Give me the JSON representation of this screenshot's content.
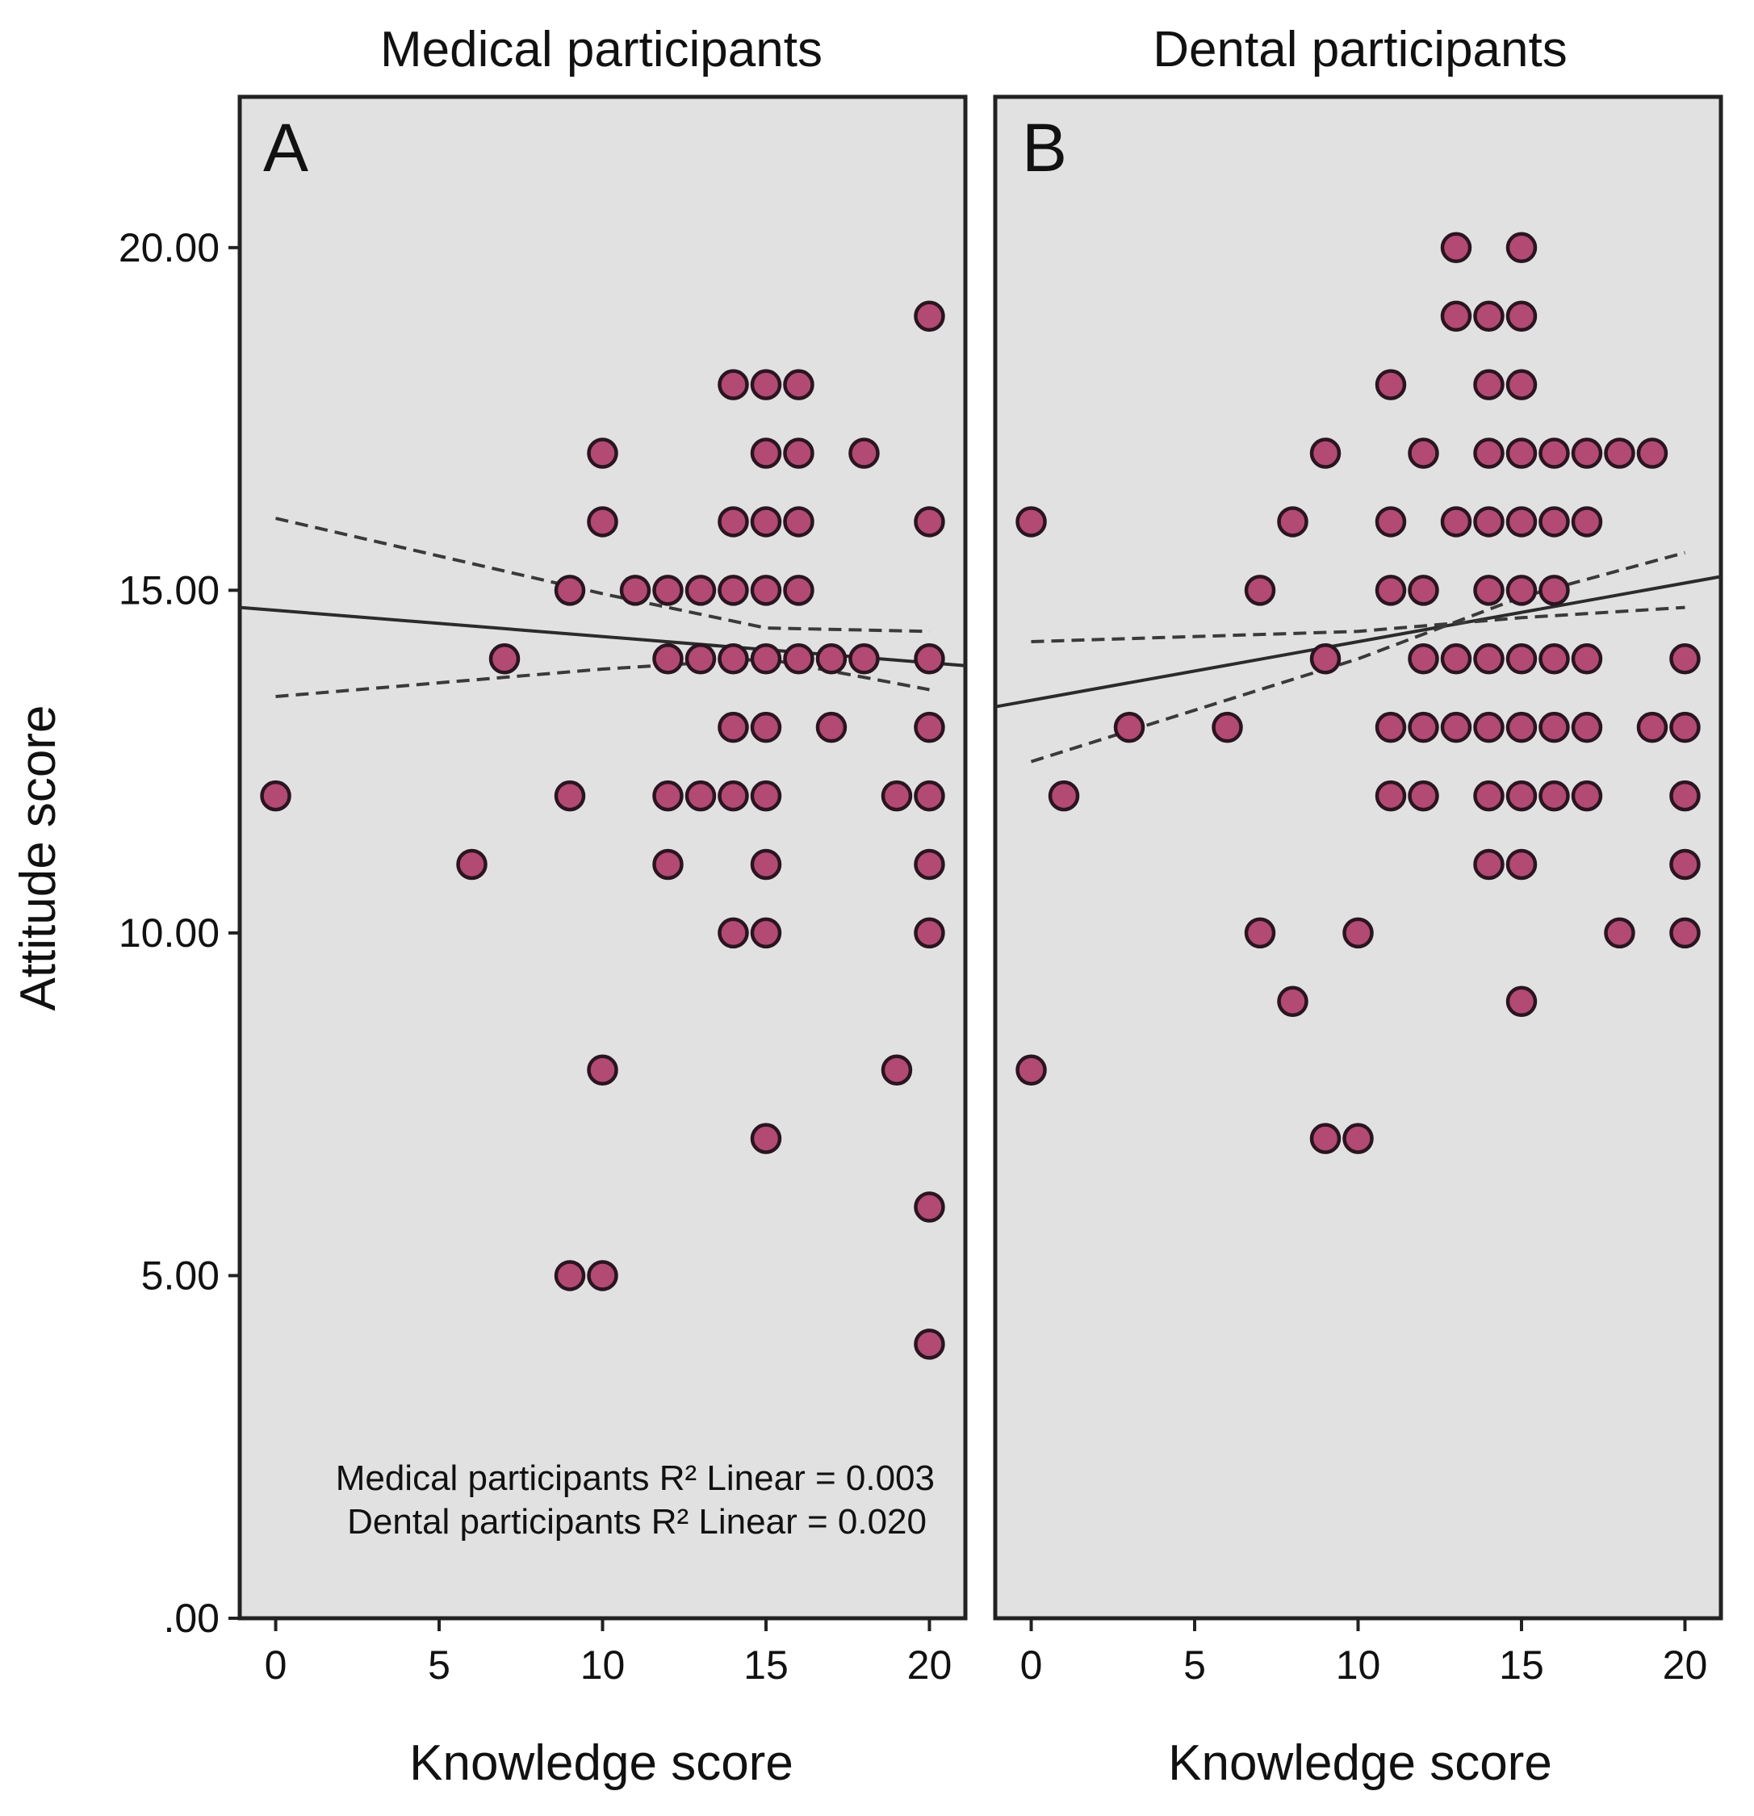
{
  "chart_data": {
    "type": "scatter",
    "y_label": "Attitude score",
    "x_label": "Knowledge score",
    "x_ticks": [
      "0",
      "5",
      "10",
      "15",
      "20"
    ],
    "y_ticks": [
      ".00",
      "5.00",
      "10.00",
      "15.00",
      "20.00"
    ],
    "x_range": [
      -1.1,
      21.1
    ],
    "y_range": [
      0,
      22.2
    ],
    "point_color": "#b24a73",
    "legend_lines": [
      "Medical participants R² Linear = 0.003",
      "Dental participants R² Linear = 0.020"
    ],
    "panels": [
      {
        "letter": "A",
        "title": "Medical participants",
        "fit": {
          "x0": -1.1,
          "y0": 14.75,
          "x1": 21.1,
          "y1": 13.9
        },
        "ci_upper": [
          [
            0,
            16.05
          ],
          [
            10,
            14.95
          ],
          [
            15,
            14.45
          ],
          [
            20,
            14.4
          ]
        ],
        "ci_lower": [
          [
            0,
            13.45
          ],
          [
            10,
            13.85
          ],
          [
            15,
            14.0
          ],
          [
            20,
            13.55
          ]
        ],
        "points": [
          [
            0,
            12
          ],
          [
            6,
            11
          ],
          [
            7,
            14
          ],
          [
            9,
            15
          ],
          [
            9,
            12
          ],
          [
            9,
            5
          ],
          [
            10,
            17
          ],
          [
            10,
            16
          ],
          [
            10,
            8
          ],
          [
            10,
            5
          ],
          [
            11,
            15
          ],
          [
            12,
            15
          ],
          [
            12,
            14
          ],
          [
            12,
            12
          ],
          [
            12,
            11
          ],
          [
            13,
            15
          ],
          [
            13,
            14
          ],
          [
            13,
            12
          ],
          [
            14,
            18
          ],
          [
            14,
            16
          ],
          [
            14,
            15
          ],
          [
            14,
            14
          ],
          [
            14,
            13
          ],
          [
            14,
            12
          ],
          [
            14,
            10
          ],
          [
            15,
            18
          ],
          [
            15,
            17
          ],
          [
            15,
            16
          ],
          [
            15,
            15
          ],
          [
            15,
            14
          ],
          [
            15,
            13
          ],
          [
            15,
            12
          ],
          [
            15,
            11
          ],
          [
            15,
            10
          ],
          [
            15,
            7
          ],
          [
            16,
            18
          ],
          [
            16,
            17
          ],
          [
            16,
            16
          ],
          [
            16,
            15
          ],
          [
            16,
            14
          ],
          [
            17,
            14
          ],
          [
            17,
            13
          ],
          [
            18,
            17
          ],
          [
            18,
            14
          ],
          [
            19,
            12
          ],
          [
            19,
            8
          ],
          [
            20,
            19
          ],
          [
            20,
            16
          ],
          [
            20,
            14
          ],
          [
            20,
            13
          ],
          [
            20,
            12
          ],
          [
            20,
            11
          ],
          [
            20,
            10
          ],
          [
            20,
            6
          ],
          [
            20,
            4
          ]
        ]
      },
      {
        "letter": "B",
        "title": "Dental participants",
        "fit": {
          "x0": -1.1,
          "y0": 13.3,
          "x1": 21.1,
          "y1": 15.2
        },
        "ci_upper": [
          [
            0,
            14.25
          ],
          [
            10,
            14.4
          ],
          [
            15,
            14.6
          ],
          [
            20,
            14.75
          ]
        ],
        "ci_lower": [
          [
            0,
            12.5
          ],
          [
            10,
            14.0
          ],
          [
            15,
            14.9
          ],
          [
            20,
            15.55
          ]
        ],
        "points": [
          [
            0,
            16
          ],
          [
            0,
            8
          ],
          [
            1,
            12
          ],
          [
            3,
            13
          ],
          [
            6,
            13
          ],
          [
            7,
            15
          ],
          [
            7,
            10
          ],
          [
            8,
            16
          ],
          [
            8,
            9
          ],
          [
            9,
            17
          ],
          [
            9,
            14
          ],
          [
            9,
            7
          ],
          [
            10,
            10
          ],
          [
            10,
            7
          ],
          [
            11,
            18
          ],
          [
            11,
            16
          ],
          [
            11,
            15
          ],
          [
            11,
            13
          ],
          [
            11,
            12
          ],
          [
            12,
            17
          ],
          [
            12,
            15
          ],
          [
            12,
            14
          ],
          [
            12,
            13
          ],
          [
            12,
            12
          ],
          [
            13,
            20
          ],
          [
            13,
            19
          ],
          [
            13,
            16
          ],
          [
            13,
            14
          ],
          [
            13,
            13
          ],
          [
            14,
            19
          ],
          [
            14,
            18
          ],
          [
            14,
            17
          ],
          [
            14,
            16
          ],
          [
            14,
            15
          ],
          [
            14,
            14
          ],
          [
            14,
            13
          ],
          [
            14,
            12
          ],
          [
            14,
            11
          ],
          [
            15,
            20
          ],
          [
            15,
            19
          ],
          [
            15,
            18
          ],
          [
            15,
            17
          ],
          [
            15,
            16
          ],
          [
            15,
            15
          ],
          [
            15,
            14
          ],
          [
            15,
            13
          ],
          [
            15,
            12
          ],
          [
            15,
            11
          ],
          [
            15,
            9
          ],
          [
            16,
            17
          ],
          [
            16,
            16
          ],
          [
            16,
            15
          ],
          [
            16,
            14
          ],
          [
            16,
            13
          ],
          [
            16,
            12
          ],
          [
            17,
            17
          ],
          [
            17,
            16
          ],
          [
            17,
            14
          ],
          [
            17,
            13
          ],
          [
            17,
            12
          ],
          [
            18,
            17
          ],
          [
            18,
            10
          ],
          [
            19,
            17
          ],
          [
            19,
            13
          ],
          [
            20,
            14
          ],
          [
            20,
            13
          ],
          [
            20,
            12
          ],
          [
            20,
            11
          ],
          [
            20,
            10
          ]
        ]
      }
    ]
  }
}
